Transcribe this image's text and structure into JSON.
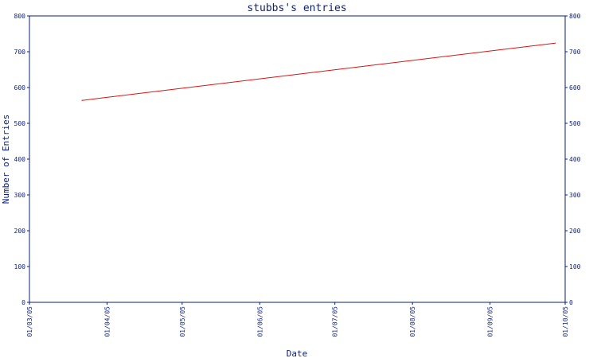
{
  "chart_data": {
    "type": "line",
    "title": "stubbs's entries",
    "xlabel": "Date",
    "ylabel": "Number of Entries",
    "x_tick_labels": [
      "01/03/05",
      "01/04/05",
      "01/05/05",
      "01/06/05",
      "01/07/05",
      "01/08/05",
      "01/09/05",
      "01/10/05"
    ],
    "y_ticks": [
      0,
      100,
      200,
      300,
      400,
      500,
      600,
      700,
      800
    ],
    "ylim": [
      0,
      800
    ],
    "series": [
      {
        "x": [
          "2005-03-22",
          "2005-09-27"
        ],
        "y": [
          564,
          724
        ]
      }
    ],
    "grid": false,
    "right_axis_mirror": true,
    "colors": {
      "line": "#dd1111",
      "axis": "#0b1f7a"
    }
  }
}
